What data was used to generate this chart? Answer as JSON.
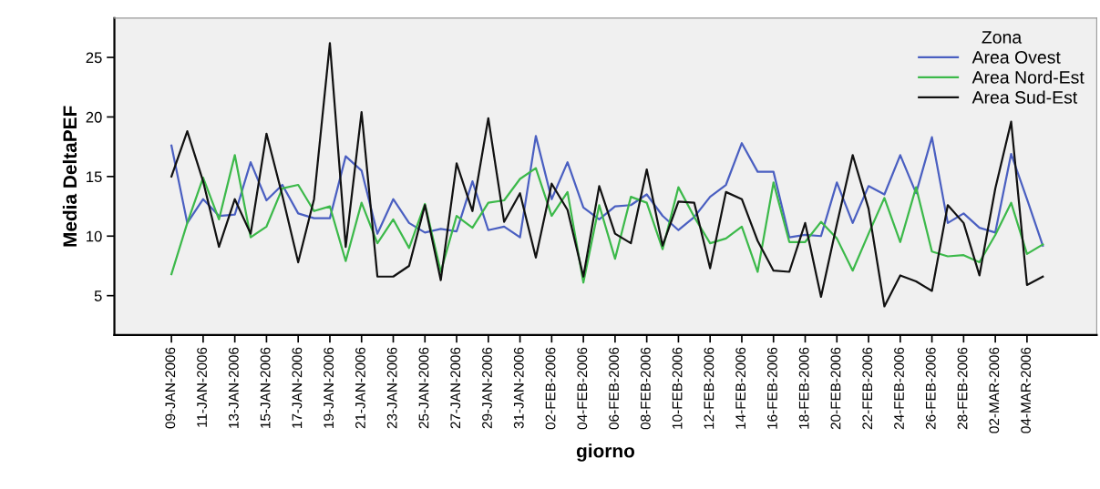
{
  "chart_data": {
    "type": "line",
    "xlabel": "giorno",
    "ylabel": "Media DeltaPEF",
    "legend_title": "Zona",
    "legend": "top right",
    "grid": false,
    "marker": "none",
    "line_style": "solid",
    "categories": [
      "09-JAN-2006",
      null,
      "11-JAN-2006",
      null,
      "13-JAN-2006",
      null,
      "15-JAN-2006",
      null,
      "17-JAN-2006",
      null,
      "19-JAN-2006",
      null,
      "21-JAN-2006",
      null,
      "23-JAN-2006",
      null,
      "25-JAN-2006",
      null,
      "27-JAN-2006",
      null,
      "29-JAN-2006",
      null,
      "31-JAN-2006",
      null,
      "02-FEB-2006",
      null,
      "04-FEB-2006",
      null,
      "06-FEB-2006",
      null,
      "08-FEB-2006",
      null,
      "10-FEB-2006",
      null,
      "12-FEB-2006",
      null,
      "14-FEB-2006",
      null,
      "16-FEB-2006",
      null,
      "18-FEB-2006",
      null,
      "20-FEB-2006",
      null,
      "22-FEB-2006",
      null,
      "24-FEB-2006",
      null,
      "26-FEB-2006",
      null,
      "28-FEB-2006",
      null,
      "02-MAR-2006",
      null,
      "04-MAR-2006",
      null
    ],
    "ylim": [
      1.7,
      28.3
    ],
    "yticks": [
      5,
      10,
      15,
      20,
      25
    ],
    "series": [
      {
        "name": "Area Ovest",
        "color": "#4a5fc1",
        "values": [
          17.6,
          11.1,
          13.1,
          11.7,
          11.8,
          16.2,
          13.0,
          14.3,
          11.9,
          11.5,
          11.5,
          16.7,
          15.5,
          10.2,
          13.1,
          11.1,
          10.3,
          10.6,
          10.4,
          14.6,
          10.5,
          10.8,
          9.9,
          18.4,
          13.1,
          16.2,
          12.4,
          11.4,
          12.5,
          12.6,
          13.5,
          11.7,
          10.5,
          11.6,
          13.3,
          14.3,
          17.8,
          15.4,
          15.4,
          9.9,
          10.1,
          10.0,
          14.5,
          11.1,
          14.2,
          13.5,
          16.8,
          13.6,
          18.3,
          11.1,
          11.9,
          10.7,
          10.3,
          16.9,
          13.1,
          9.2
        ]
      },
      {
        "name": "Area Nord-Est",
        "color": "#3cb94a",
        "values": [
          6.8,
          11.1,
          14.9,
          11.4,
          16.8,
          9.9,
          10.8,
          14.0,
          14.3,
          12.1,
          12.5,
          7.9,
          12.8,
          9.4,
          11.4,
          9.0,
          12.7,
          7.0,
          11.7,
          10.7,
          12.8,
          13.0,
          14.8,
          15.7,
          11.7,
          13.7,
          6.1,
          12.6,
          8.1,
          13.3,
          12.8,
          8.9,
          14.1,
          11.6,
          9.4,
          9.8,
          10.8,
          7.0,
          14.5,
          9.5,
          9.5,
          11.2,
          9.8,
          7.1,
          10.2,
          13.2,
          9.5,
          14.1,
          8.7,
          8.3,
          8.4,
          7.8,
          10.1,
          12.8,
          8.5,
          9.3
        ]
      },
      {
        "name": "Area Sud-Est",
        "color": "#111111",
        "values": [
          15.0,
          18.8,
          14.6,
          9.1,
          13.1,
          10.2,
          18.6,
          13.4,
          7.8,
          13.1,
          26.2,
          9.1,
          20.4,
          6.6,
          6.6,
          7.5,
          12.6,
          6.3,
          16.1,
          12.1,
          19.9,
          11.2,
          13.6,
          8.2,
          14.4,
          12.2,
          6.6,
          14.2,
          10.2,
          9.4,
          15.6,
          9.2,
          12.9,
          12.8,
          7.3,
          13.7,
          13.1,
          9.6,
          7.1,
          7.0,
          11.1,
          4.9,
          11.0,
          16.8,
          12.3,
          4.1,
          6.7,
          6.2,
          5.4,
          12.6,
          11.1,
          6.7,
          14.0,
          19.6,
          5.9,
          6.6
        ]
      }
    ]
  }
}
